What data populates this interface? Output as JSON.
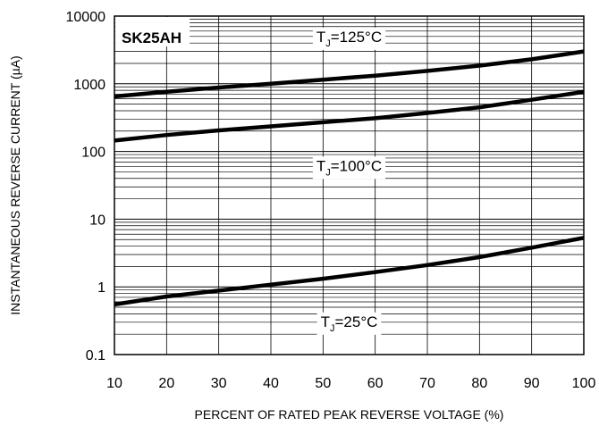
{
  "chart_data": {
    "type": "line",
    "device_label": "SK25AH",
    "xlabel": "PERCENT OF RATED PEAK REVERSE VOLTAGE (%)",
    "ylabel": "INSTANTANEOUS REVERSE CURRENT (µA)",
    "xlim": [
      10,
      100
    ],
    "ylim": [
      0.1,
      10000
    ],
    "yscale": "log",
    "grid": true,
    "x_ticks": [
      10,
      20,
      30,
      40,
      50,
      60,
      70,
      80,
      90,
      100
    ],
    "y_ticks": [
      {
        "value": 0.1,
        "label": "0.1"
      },
      {
        "value": 1,
        "label": "1"
      },
      {
        "value": 10,
        "label": "10"
      },
      {
        "value": 100,
        "label": "100"
      },
      {
        "value": 1000,
        "label": "1000"
      },
      {
        "value": 10000,
        "label": "10000"
      }
    ],
    "series": [
      {
        "id": "125",
        "label": {
          "prefix": "T",
          "sub": "J",
          "suffix": "=125°C"
        },
        "label_at": {
          "x": 55,
          "y": 5000
        },
        "x": [
          10,
          20,
          30,
          40,
          50,
          60,
          70,
          80,
          90,
          100
        ],
        "y": [
          650,
          760,
          880,
          1000,
          1150,
          1320,
          1550,
          1850,
          2300,
          3000
        ]
      },
      {
        "id": "100",
        "label": {
          "prefix": "T",
          "sub": "J",
          "suffix": "=100°C"
        },
        "label_at": {
          "x": 55,
          "y": 62
        },
        "x": [
          10,
          20,
          30,
          40,
          50,
          60,
          70,
          80,
          90,
          100
        ],
        "y": [
          145,
          175,
          205,
          235,
          270,
          310,
          370,
          450,
          580,
          760
        ]
      },
      {
        "id": "25",
        "label": {
          "prefix": "T",
          "sub": "J",
          "suffix": "=25°C"
        },
        "label_at": {
          "x": 55,
          "y": 0.31
        },
        "x": [
          10,
          20,
          30,
          40,
          50,
          60,
          70,
          80,
          90,
          100
        ],
        "y": [
          0.55,
          0.72,
          0.88,
          1.08,
          1.32,
          1.65,
          2.1,
          2.75,
          3.8,
          5.3
        ]
      }
    ]
  }
}
